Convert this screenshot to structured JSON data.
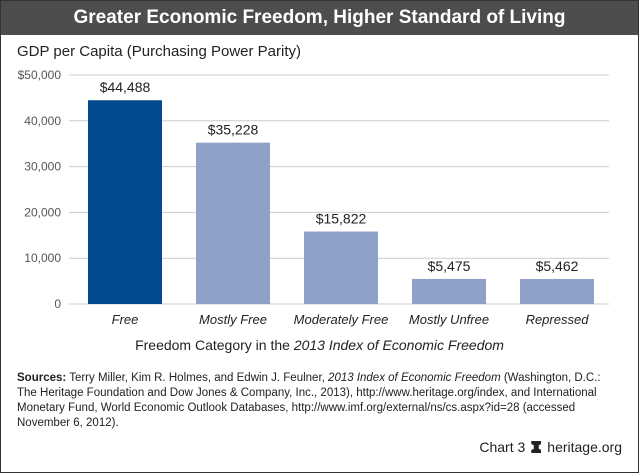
{
  "title": "Greater Economic Freedom, Higher Standard of Living",
  "chart_data": {
    "type": "bar",
    "title": "Greater Economic Freedom, Higher Standard of Living",
    "ylabel": "GDP per Capita (Purchasing Power Parity)",
    "xlabel_prefix": "Freedom Category in the ",
    "xlabel_italic": "2013 Index of Economic Freedom",
    "categories": [
      "Free",
      "Mostly Free",
      "Moderately Free",
      "Mostly Unfree",
      "Repressed"
    ],
    "values": [
      44488,
      35228,
      15822,
      5475,
      5462
    ],
    "data_labels": [
      "$44,488",
      "$35,228",
      "$15,822",
      "$5,475",
      "$5,462"
    ],
    "ylim": [
      0,
      50000
    ],
    "yticks": [
      0,
      10000,
      20000,
      30000,
      40000,
      50000
    ],
    "ytick_labels": [
      "0",
      "10,000",
      "20,000",
      "30,000",
      "40,000",
      "$50,000"
    ],
    "grid": true,
    "colors": {
      "highlight": "#004a8d",
      "default": "#8fa0c9"
    },
    "highlight_index": 0
  },
  "sources": {
    "label": "Sources:",
    "text1": " Terry Miller, Kim R. Holmes, and Edwin J. Feulner, ",
    "italic": "2013 Index of Economic Freedom",
    "text2": " (Washington, D.C.: The Heritage Foundation and Dow Jones & Company, Inc., 2013), http://www.heritage.org/index, and International Monetary Fund, World Economic Outlook Databases, http://www.imf.org/external/ns/cs.aspx?id=28 (accessed November 6, 2012)."
  },
  "footer": {
    "chart_label": "Chart 3",
    "site": "heritage.org",
    "logo_icon": "heritage-bell-icon"
  }
}
